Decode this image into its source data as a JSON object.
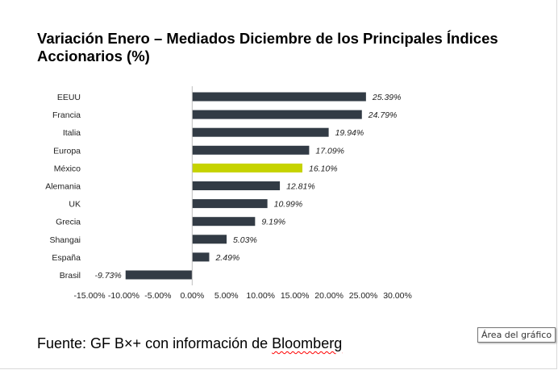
{
  "chart_data": {
    "type": "bar",
    "orientation": "horizontal",
    "title": "Variación Enero – Mediados Diciembre de los Principales Índices Accionarios (%)",
    "categories": [
      "EEUU",
      "Francia",
      "Italia",
      "Europa",
      "México",
      "Alemania",
      "UK",
      "Grecia",
      "Shangai",
      "España",
      "Brasil"
    ],
    "values": [
      25.39,
      24.79,
      19.94,
      17.09,
      16.1,
      12.81,
      10.99,
      9.19,
      5.03,
      2.49,
      -9.73
    ],
    "value_labels": [
      "25.39%",
      "24.79%",
      "19.94%",
      "17.09%",
      "16.10%",
      "12.81%",
      "10.99%",
      "9.19%",
      "5.03%",
      "2.49%",
      "-9.73%"
    ],
    "xlim": [
      -15,
      30
    ],
    "xticks": [
      -15,
      -10,
      -5,
      0,
      5,
      10,
      15,
      20,
      25,
      30
    ],
    "xtick_labels": [
      "-15.00%",
      "-10.00%",
      "-5.00%",
      "0.00%",
      "5.00%",
      "10.00%",
      "15.00%",
      "20.00%",
      "25.00%",
      "30.00%"
    ],
    "grid": false,
    "legend": "none",
    "colors": {
      "default": "#323b45",
      "highlight": "#c6d300"
    },
    "highlight_category": "México"
  },
  "source": {
    "prefix": "Fuente: GF B×+ con información de ",
    "underlined": "Bloomberg"
  },
  "tooltip": {
    "text": "Área del gráfico"
  }
}
